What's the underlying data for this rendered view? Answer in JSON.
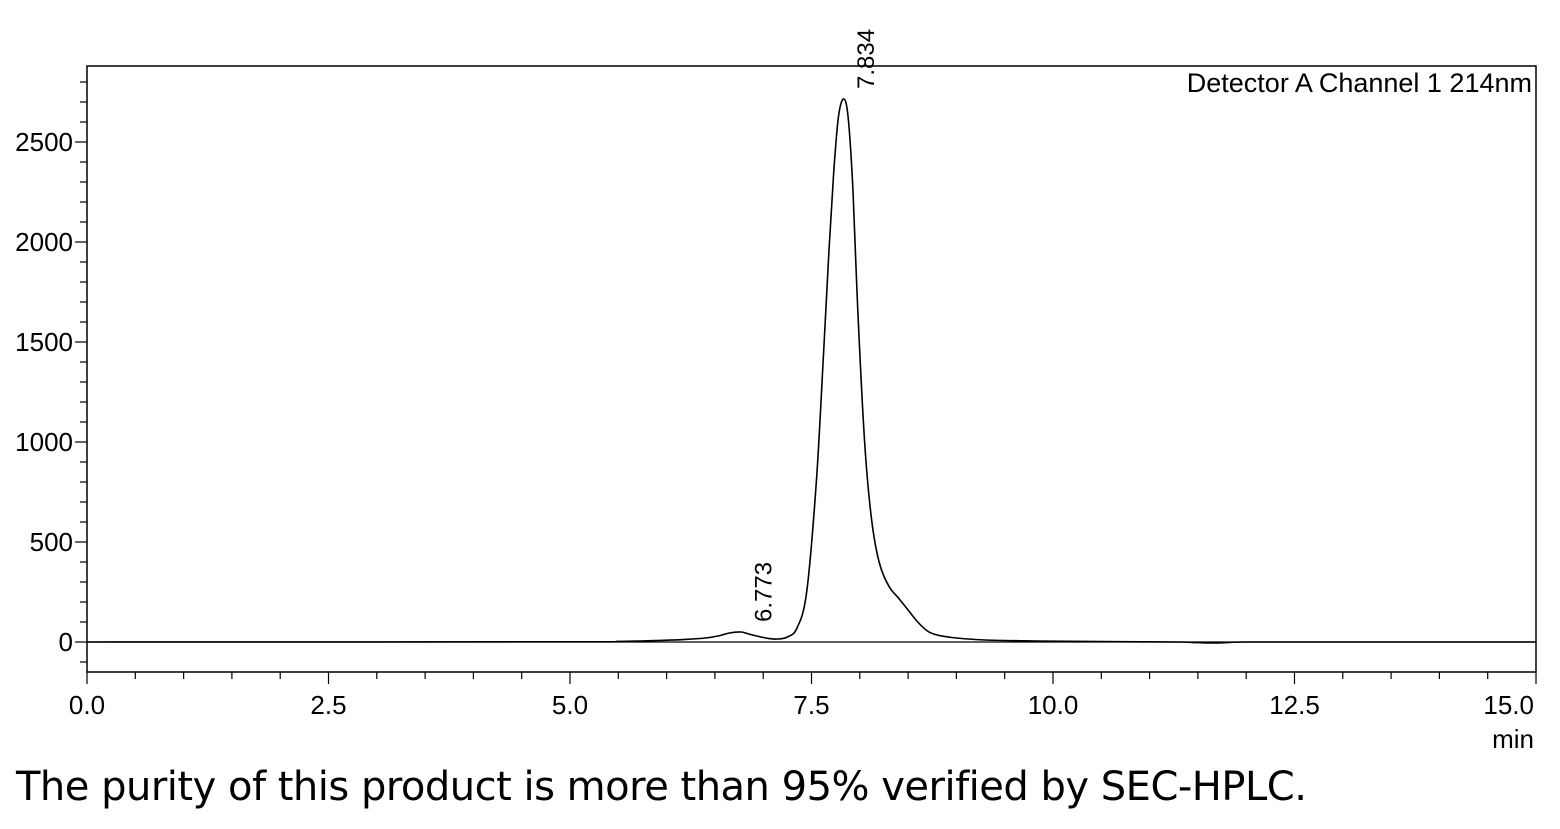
{
  "chart_data": {
    "type": "line",
    "legend": "Detector A Channel 1 214nm",
    "xlabel": "min",
    "ylabel": "",
    "xlim": [
      0,
      15
    ],
    "ylim": [
      -150,
      2880
    ],
    "x_ticks": [
      0,
      2.5,
      5,
      7.5,
      10,
      12.5,
      15
    ],
    "x_tick_labels": [
      "0.0",
      "2.5",
      "5.0",
      "7.5",
      "10.0",
      "12.5",
      "15.0"
    ],
    "y_ticks": [
      0,
      500,
      1000,
      1500,
      2000,
      2500
    ],
    "y_tick_labels": [
      "0",
      "500",
      "1000",
      "1500",
      "2000",
      "2500"
    ],
    "peaks": [
      {
        "time": 6.773,
        "label": "6.773",
        "height": 50
      },
      {
        "time": 7.834,
        "label": "7.834",
        "height": 2715
      }
    ],
    "series": [
      {
        "x": [
          0,
          5.0,
          5.5,
          5.8,
          6.0,
          6.2,
          6.4,
          6.55,
          6.65,
          6.773,
          6.85,
          6.95,
          7.05,
          7.15,
          7.25,
          7.35,
          7.45,
          7.55,
          7.62,
          7.68,
          7.73,
          7.78,
          7.834,
          7.88,
          7.93,
          7.98,
          8.05,
          8.12,
          8.2,
          8.3,
          8.4,
          8.5,
          8.6,
          8.7,
          8.8,
          9.0,
          9.3,
          9.7,
          10.0,
          10.5,
          11.0,
          11.3,
          11.5,
          11.65,
          11.8,
          12.0,
          13.0,
          15.0
        ],
        "y": [
          0,
          1,
          3,
          6,
          9,
          13,
          20,
          32,
          45,
          50,
          40,
          28,
          18,
          15,
          25,
          70,
          250,
          800,
          1400,
          1950,
          2350,
          2630,
          2715,
          2620,
          2250,
          1650,
          1000,
          620,
          400,
          280,
          220,
          160,
          100,
          55,
          35,
          20,
          10,
          6,
          4,
          2,
          1,
          0,
          -3,
          -5,
          -3,
          0,
          0,
          0
        ]
      }
    ]
  },
  "caption": "The purity of this product is more than 95% verified by SEC-HPLC."
}
